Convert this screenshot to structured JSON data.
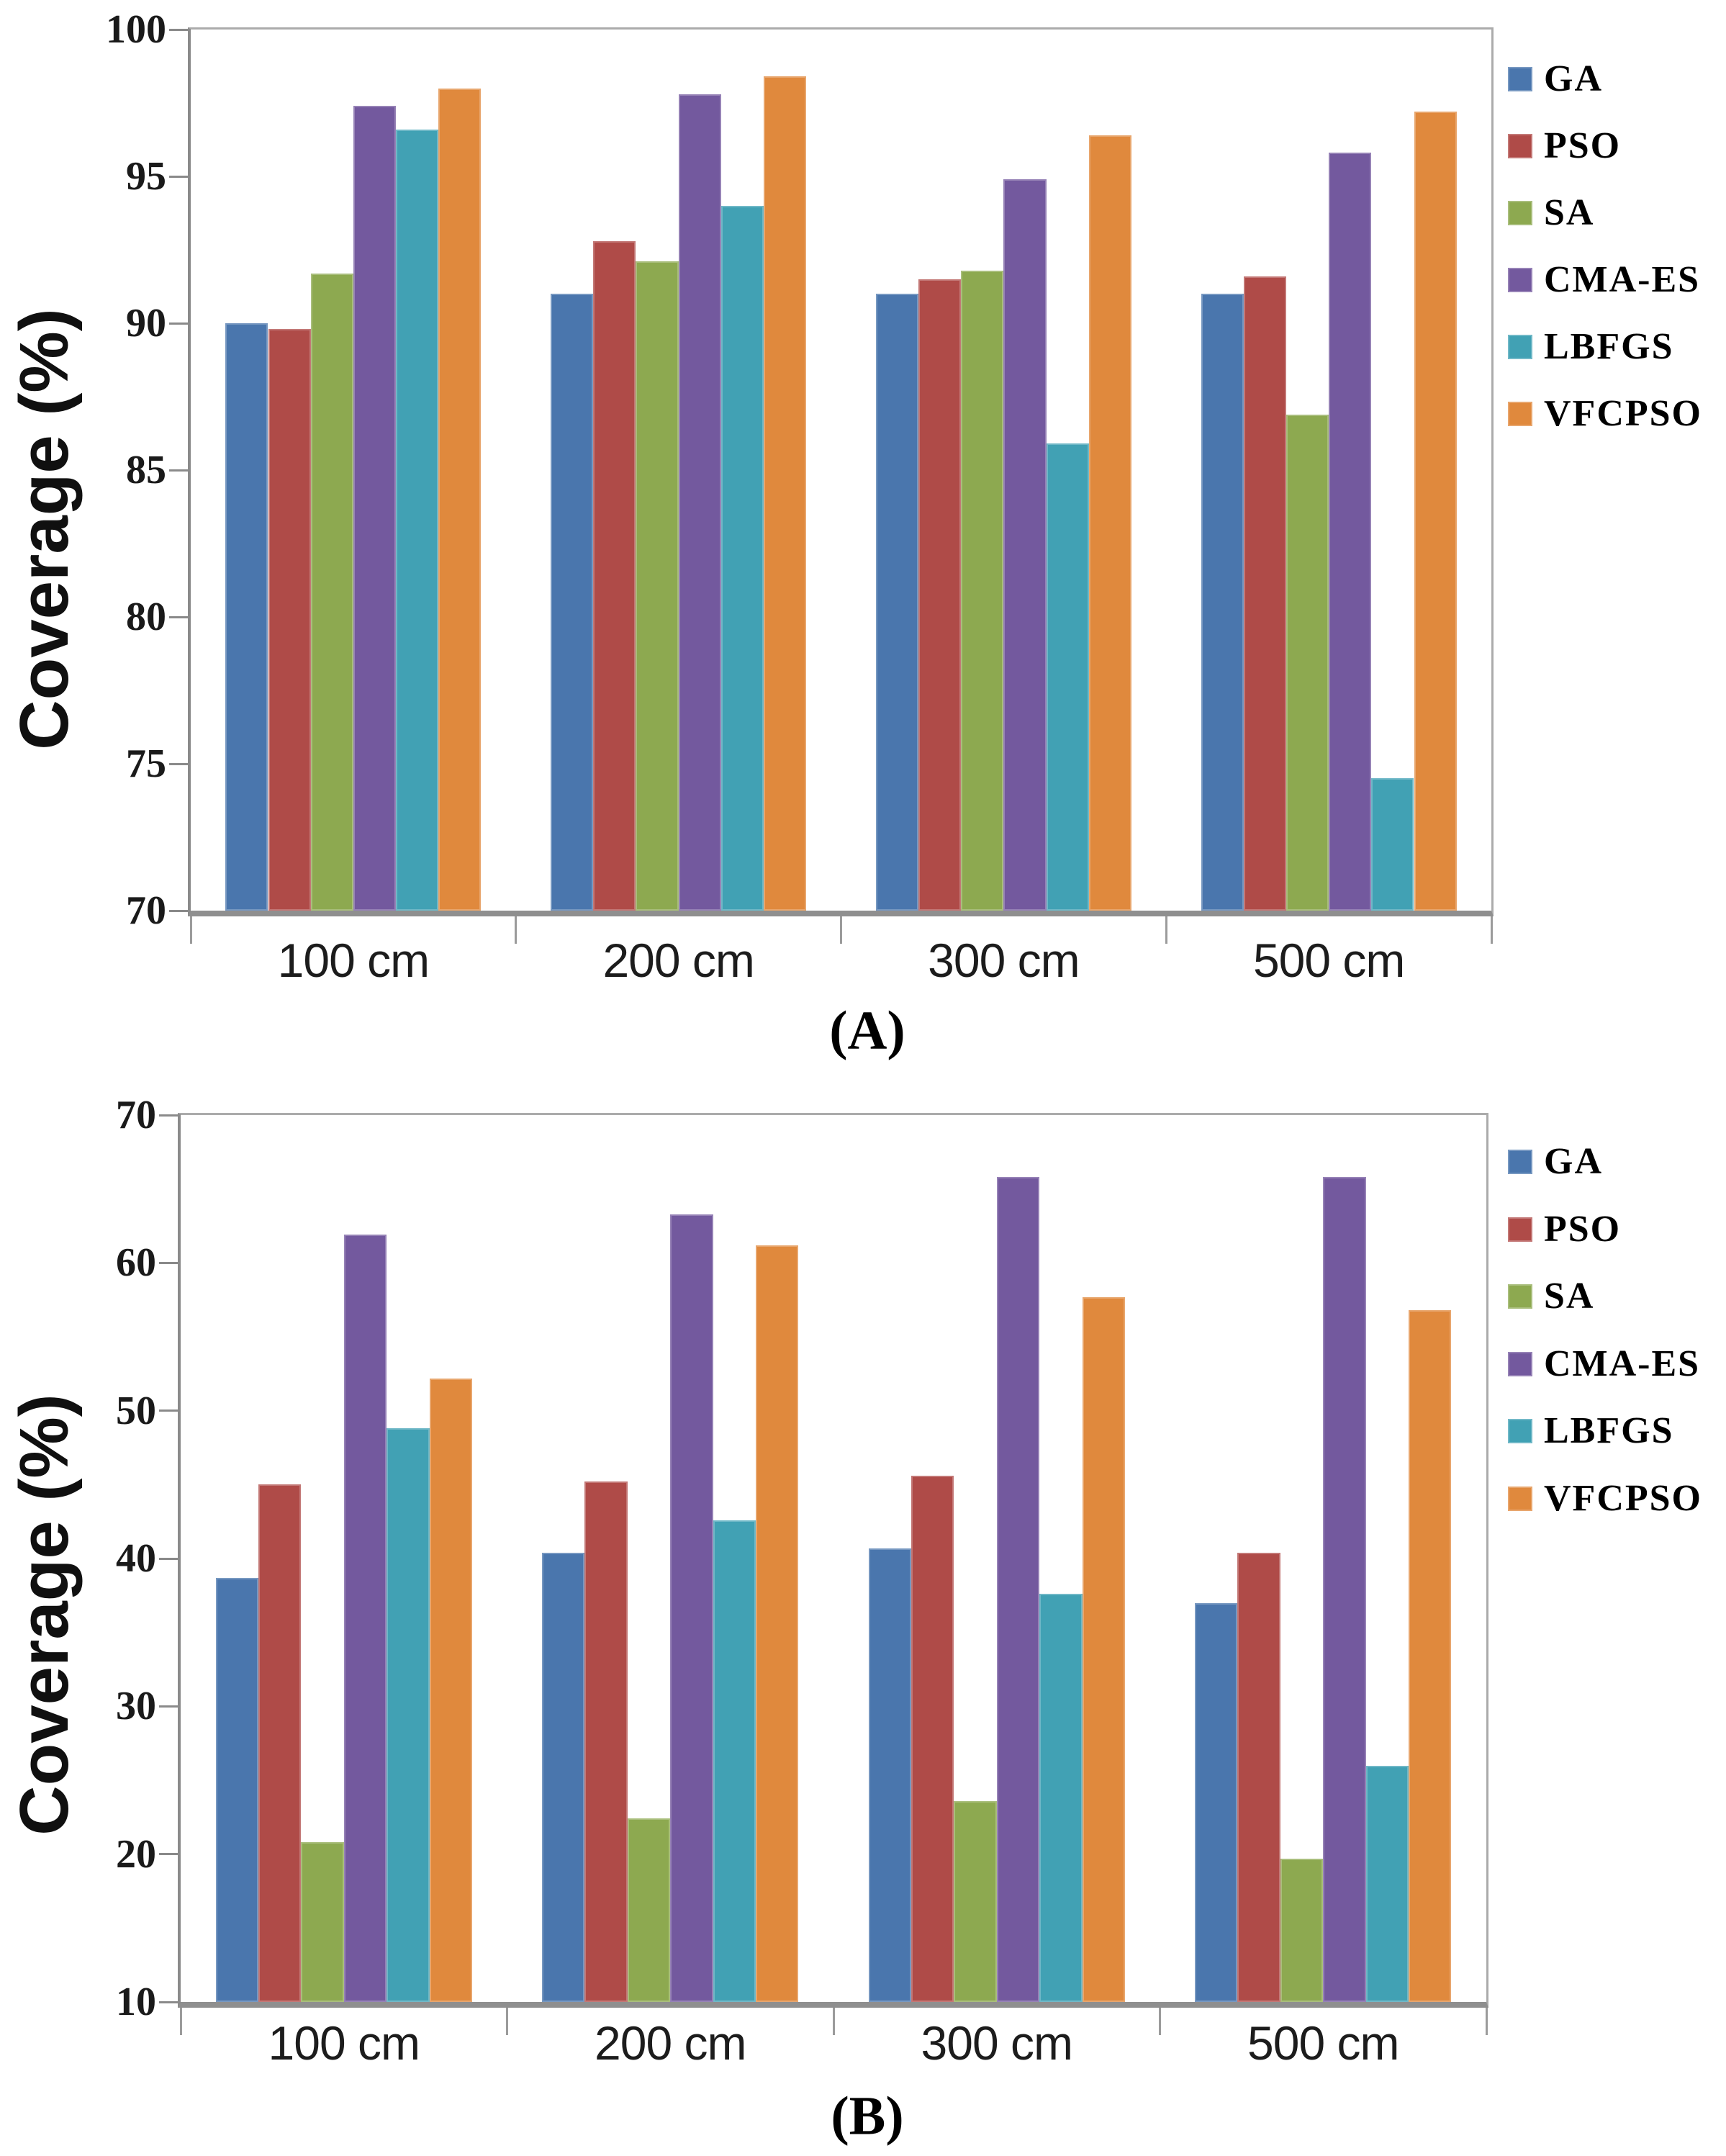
{
  "figure": {
    "background": "#ffffff",
    "description": "Two grouped bar charts comparing coverage of optimization algorithms at different distances"
  },
  "palette": {
    "plot_border": "#ababab",
    "axis_line": "#8a8a8a",
    "baseline": "#8f8f8f",
    "tick_mark": "#9b9b9b",
    "tick_text": "#1a1a1a"
  },
  "legend": {
    "items": [
      "GA",
      "PSO",
      "SA",
      "CMA-ES",
      "LBFGS",
      "VFCPSO"
    ]
  },
  "chart_data": [
    {
      "id": "A",
      "type": "bar",
      "caption": "(A)",
      "ylabel": "Coverage (%)",
      "categories": [
        "100 cm",
        "200 cm",
        "300 cm",
        "500 cm"
      ],
      "ylim": [
        70,
        100
      ],
      "yticks": [
        70,
        75,
        80,
        85,
        90,
        95,
        100
      ],
      "grid": false,
      "legend_position": "right",
      "series": [
        {
          "name": "GA",
          "color": "#4a76ad",
          "values": [
            90.0,
            91.0,
            91.0,
            91.0
          ]
        },
        {
          "name": "PSO",
          "color": "#af4b48",
          "values": [
            89.8,
            92.8,
            91.5,
            91.6
          ]
        },
        {
          "name": "SA",
          "color": "#8da950",
          "values": [
            91.7,
            92.1,
            91.8,
            86.9
          ]
        },
        {
          "name": "CMA-ES",
          "color": "#73599e",
          "values": [
            97.4,
            97.8,
            94.9,
            95.8
          ]
        },
        {
          "name": "LBFGS",
          "color": "#41a1b4",
          "values": [
            96.6,
            94.0,
            85.9,
            74.5
          ]
        },
        {
          "name": "VFCPSO",
          "color": "#e0893d",
          "values": [
            98.0,
            98.4,
            96.4,
            97.2
          ]
        }
      ]
    },
    {
      "id": "B",
      "type": "bar",
      "caption": "(B)",
      "ylabel": "Coverage (%)",
      "categories": [
        "100 cm",
        "200 cm",
        "300 cm",
        "500 cm"
      ],
      "ylim": [
        10,
        70
      ],
      "yticks": [
        10,
        20,
        30,
        40,
        50,
        60,
        70
      ],
      "grid": false,
      "legend_position": "right",
      "series": [
        {
          "name": "GA",
          "color": "#4a76ad",
          "values": [
            38.7,
            40.4,
            40.7,
            37.0
          ]
        },
        {
          "name": "PSO",
          "color": "#af4b48",
          "values": [
            45.0,
            45.2,
            45.6,
            40.4
          ]
        },
        {
          "name": "SA",
          "color": "#8da950",
          "values": [
            20.8,
            22.4,
            23.6,
            19.7
          ]
        },
        {
          "name": "CMA-ES",
          "color": "#73599e",
          "values": [
            61.9,
            63.3,
            65.8,
            65.8
          ]
        },
        {
          "name": "LBFGS",
          "color": "#41a1b4",
          "values": [
            48.8,
            42.6,
            37.6,
            26.0
          ]
        },
        {
          "name": "VFCPSO",
          "color": "#e0893d",
          "values": [
            52.2,
            61.2,
            57.7,
            56.8
          ]
        }
      ]
    }
  ]
}
